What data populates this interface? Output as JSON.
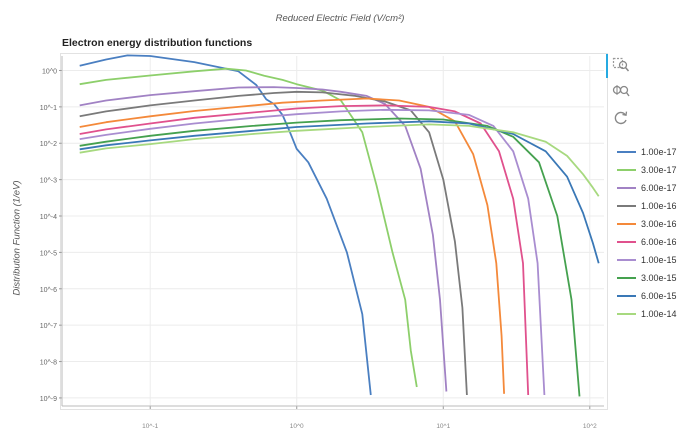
{
  "page": {
    "top_label": "Reduced Electric Field (V/cm²)"
  },
  "toolbar": {
    "tools": [
      {
        "name": "box-zoom-icon",
        "active": true
      },
      {
        "name": "wheel-zoom-icon",
        "active": false
      },
      {
        "name": "reset-icon",
        "active": false
      }
    ]
  },
  "chart_data": {
    "type": "line",
    "title": "Electron energy distribution functions",
    "xlabel": "",
    "ylabel": "Distribution Function (1/eV)",
    "xscale": "log",
    "yscale": "log",
    "xlim": [
      0.025,
      125
    ],
    "ylim": [
      6e-10,
      2.5
    ],
    "xticks": [
      {
        "value": 0.1,
        "label": "10^-1"
      },
      {
        "value": 1,
        "label": "10^0"
      },
      {
        "value": 10,
        "label": "10^1"
      },
      {
        "value": 100,
        "label": "10^2"
      }
    ],
    "yticks": [
      {
        "value": 1,
        "label": "10^0"
      },
      {
        "value": 0.1,
        "label": "10^-1"
      },
      {
        "value": 0.01,
        "label": "10^-2"
      },
      {
        "value": 0.001,
        "label": "10^-3"
      },
      {
        "value": 0.0001,
        "label": "10^-4"
      },
      {
        "value": 1e-05,
        "label": "10^-5"
      },
      {
        "value": 1e-06,
        "label": "10^-6"
      },
      {
        "value": 1e-07,
        "label": "10^-7"
      },
      {
        "value": 1e-08,
        "label": "10^-8"
      },
      {
        "value": 1e-09,
        "label": "10^-9"
      }
    ],
    "grid": true,
    "legend_position": "right",
    "series": [
      {
        "name": "1.00e-17",
        "color": "#4a7fc1",
        "points": [
          [
            0.033,
            1.35
          ],
          [
            0.05,
            2.0
          ],
          [
            0.07,
            2.6
          ],
          [
            0.1,
            2.5
          ],
          [
            0.2,
            1.7
          ],
          [
            0.4,
            0.95
          ],
          [
            0.53,
            0.4
          ],
          [
            0.62,
            0.16
          ],
          [
            0.7,
            0.12
          ],
          [
            0.8,
            0.06
          ],
          [
            0.9,
            0.02
          ],
          [
            1.0,
            0.007
          ],
          [
            1.2,
            0.003
          ],
          [
            1.6,
            0.0003
          ],
          [
            2.2,
            1e-05
          ],
          [
            2.8,
            2e-07
          ],
          [
            3.2,
            1.2e-09
          ]
        ]
      },
      {
        "name": "3.00e-17",
        "color": "#8dcf6b",
        "points": [
          [
            0.033,
            0.42
          ],
          [
            0.05,
            0.55
          ],
          [
            0.1,
            0.73
          ],
          [
            0.2,
            0.95
          ],
          [
            0.33,
            1.12
          ],
          [
            0.45,
            1.0
          ],
          [
            0.6,
            0.72
          ],
          [
            0.8,
            0.55
          ],
          [
            1.0,
            0.42
          ],
          [
            1.5,
            0.28
          ],
          [
            2.0,
            0.15
          ],
          [
            2.8,
            0.02
          ],
          [
            3.5,
            0.0007
          ],
          [
            4.5,
            1e-05
          ],
          [
            5.5,
            5e-07
          ],
          [
            6.0,
            2e-08
          ],
          [
            6.6,
            2e-09
          ]
        ]
      },
      {
        "name": "6.00e-17",
        "color": "#a182c4",
        "points": [
          [
            0.033,
            0.11
          ],
          [
            0.05,
            0.15
          ],
          [
            0.1,
            0.21
          ],
          [
            0.2,
            0.27
          ],
          [
            0.4,
            0.34
          ],
          [
            0.7,
            0.35
          ],
          [
            1.0,
            0.33
          ],
          [
            1.5,
            0.3
          ],
          [
            2.0,
            0.26
          ],
          [
            3.0,
            0.2
          ],
          [
            4.0,
            0.12
          ],
          [
            5.5,
            0.03
          ],
          [
            7.0,
            0.002
          ],
          [
            8.5,
            3e-05
          ],
          [
            9.5,
            5e-07
          ],
          [
            10.5,
            1.5e-09
          ]
        ]
      },
      {
        "name": "1.00e-16",
        "color": "#7a7a7a",
        "points": [
          [
            0.033,
            0.055
          ],
          [
            0.05,
            0.075
          ],
          [
            0.1,
            0.11
          ],
          [
            0.2,
            0.15
          ],
          [
            0.4,
            0.2
          ],
          [
            0.7,
            0.24
          ],
          [
            1.0,
            0.26
          ],
          [
            1.5,
            0.25
          ],
          [
            2.5,
            0.2
          ],
          [
            4.0,
            0.14
          ],
          [
            6.0,
            0.08
          ],
          [
            8.0,
            0.02
          ],
          [
            10.0,
            0.001
          ],
          [
            12.0,
            2e-05
          ],
          [
            13.5,
            3e-07
          ],
          [
            14.5,
            1.2e-09
          ]
        ]
      },
      {
        "name": "3.00e-16",
        "color": "#f4893a",
        "points": [
          [
            0.033,
            0.028
          ],
          [
            0.05,
            0.038
          ],
          [
            0.1,
            0.055
          ],
          [
            0.2,
            0.077
          ],
          [
            0.4,
            0.1
          ],
          [
            0.8,
            0.13
          ],
          [
            1.5,
            0.15
          ],
          [
            3.0,
            0.17
          ],
          [
            5.0,
            0.15
          ],
          [
            8.0,
            0.1
          ],
          [
            12.0,
            0.04
          ],
          [
            16.0,
            0.005
          ],
          [
            20.0,
            0.0002
          ],
          [
            23.0,
            5e-06
          ],
          [
            25.0,
            5e-08
          ],
          [
            26.0,
            1.3e-09
          ]
        ]
      },
      {
        "name": "6.00e-16",
        "color": "#e0518d",
        "points": [
          [
            0.033,
            0.018
          ],
          [
            0.05,
            0.024
          ],
          [
            0.1,
            0.035
          ],
          [
            0.2,
            0.05
          ],
          [
            0.5,
            0.07
          ],
          [
            1.0,
            0.09
          ],
          [
            2.0,
            0.105
          ],
          [
            4.0,
            0.11
          ],
          [
            8.0,
            0.1
          ],
          [
            12.0,
            0.075
          ],
          [
            18.0,
            0.035
          ],
          [
            24.0,
            0.006
          ],
          [
            30.0,
            0.0003
          ],
          [
            35.0,
            5e-06
          ],
          [
            38.0,
            1.2e-09
          ]
        ]
      },
      {
        "name": "1.00e-15",
        "color": "#a98dd0",
        "points": [
          [
            0.033,
            0.013
          ],
          [
            0.05,
            0.017
          ],
          [
            0.1,
            0.025
          ],
          [
            0.2,
            0.035
          ],
          [
            0.5,
            0.05
          ],
          [
            1.0,
            0.063
          ],
          [
            2.0,
            0.075
          ],
          [
            4.0,
            0.083
          ],
          [
            8.0,
            0.08
          ],
          [
            15.0,
            0.06
          ],
          [
            22.0,
            0.03
          ],
          [
            30.0,
            0.006
          ],
          [
            38.0,
            0.0003
          ],
          [
            44.0,
            5e-06
          ],
          [
            49.0,
            1.2e-09
          ]
        ]
      },
      {
        "name": "3.00e-15",
        "color": "#45a14f",
        "points": [
          [
            0.033,
            0.0085
          ],
          [
            0.05,
            0.011
          ],
          [
            0.1,
            0.016
          ],
          [
            0.2,
            0.022
          ],
          [
            0.5,
            0.03
          ],
          [
            1.0,
            0.037
          ],
          [
            2.0,
            0.043
          ],
          [
            5.0,
            0.048
          ],
          [
            10.0,
            0.045
          ],
          [
            20.0,
            0.03
          ],
          [
            30.0,
            0.015
          ],
          [
            45.0,
            0.003
          ],
          [
            60.0,
            0.0001
          ],
          [
            75.0,
            5e-07
          ],
          [
            85.0,
            1.1e-09
          ]
        ]
      },
      {
        "name": "6.00e-15",
        "color": "#3a78b6",
        "points": [
          [
            0.033,
            0.0068
          ],
          [
            0.05,
            0.0088
          ],
          [
            0.1,
            0.012
          ],
          [
            0.2,
            0.016
          ],
          [
            0.5,
            0.022
          ],
          [
            1.0,
            0.028
          ],
          [
            3.0,
            0.035
          ],
          [
            8.0,
            0.04
          ],
          [
            15.0,
            0.035
          ],
          [
            30.0,
            0.018
          ],
          [
            50.0,
            0.006
          ],
          [
            70.0,
            0.0012
          ],
          [
            90.0,
            0.00012
          ],
          [
            105.0,
            1.8e-05
          ],
          [
            115.0,
            5e-06
          ]
        ]
      },
      {
        "name": "1.00e-14",
        "color": "#a7d97f",
        "points": [
          [
            0.033,
            0.0055
          ],
          [
            0.05,
            0.0072
          ],
          [
            0.1,
            0.0095
          ],
          [
            0.2,
            0.013
          ],
          [
            0.5,
            0.018
          ],
          [
            1.0,
            0.022
          ],
          [
            3.0,
            0.028
          ],
          [
            8.0,
            0.033
          ],
          [
            15.0,
            0.03
          ],
          [
            30.0,
            0.02
          ],
          [
            50.0,
            0.011
          ],
          [
            70.0,
            0.0045
          ],
          [
            90.0,
            0.0014
          ],
          [
            105.0,
            0.0006
          ],
          [
            115.0,
            0.00035
          ]
        ]
      }
    ]
  }
}
